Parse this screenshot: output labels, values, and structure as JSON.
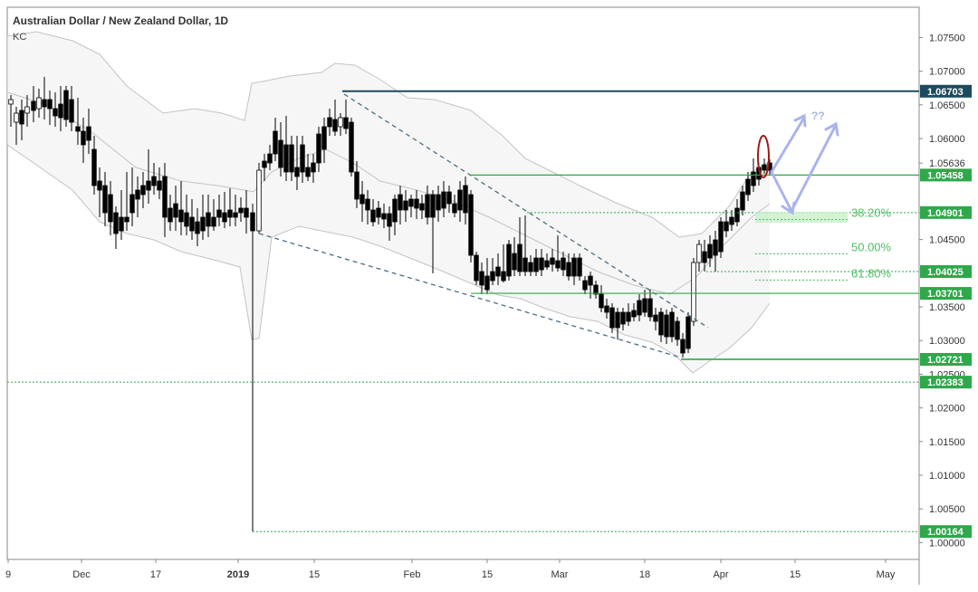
{
  "chart_data": {
    "type": "candlestick",
    "title": "Australian Dollar / New Zealand Dollar, 1D",
    "indicator": "KC",
    "x_tick_labels": [
      "9",
      "Dec",
      "17",
      "2019",
      "15",
      "Feb",
      "15",
      "Mar",
      "18",
      "Apr",
      "15",
      "May"
    ],
    "y_tick_labels": [
      "1.07500",
      "1.07000",
      "1.06500",
      "1.06000",
      "1.05636",
      "1.04500",
      "1.03500",
      "1.03000",
      "1.02500",
      "1.02000",
      "1.01500",
      "1.01000",
      "1.00500",
      "1.00000"
    ],
    "ylim": [
      0.9975,
      1.0795
    ],
    "price_levels": [
      {
        "label": "1.06703",
        "value": 1.06703,
        "color": "#1c4a5e"
      },
      {
        "label": "1.05458",
        "value": 1.05458,
        "color": "#2ea84a"
      },
      {
        "label": "1.04901",
        "value": 1.04901,
        "color": "#2ea84a"
      },
      {
        "label": "1.04025",
        "value": 1.04025,
        "color": "#2ea84a"
      },
      {
        "label": "1.03701",
        "value": 1.03701,
        "color": "#2ea84a"
      },
      {
        "label": "1.02721",
        "value": 1.02721,
        "color": "#2ea84a"
      },
      {
        "label": "1.02383",
        "value": 1.02383,
        "color": "#2ea84a"
      },
      {
        "label": "1.00164",
        "value": 1.00164,
        "color": "#2ea84a"
      }
    ],
    "fib_levels": [
      {
        "label": "38.20%",
        "value": 1.0488
      },
      {
        "label": "50.00%",
        "value": 1.0437
      },
      {
        "label": "61.80%",
        "value": 1.0398
      }
    ],
    "annotation": "??",
    "colors": {
      "up": "#ffffff",
      "down": "#000000",
      "level": "#2ea84a",
      "resistance": "#1c4a5e",
      "arrow": "#a9b4ee",
      "ellipse": "#9b1b1b"
    }
  }
}
